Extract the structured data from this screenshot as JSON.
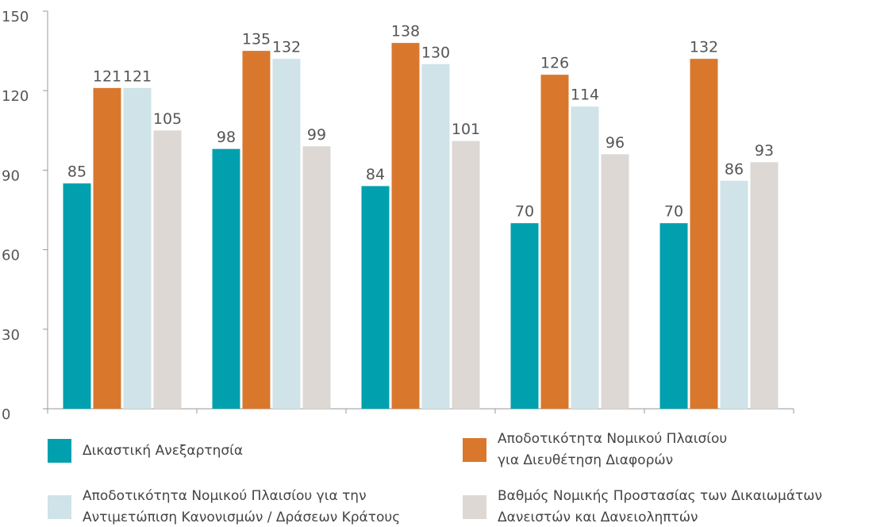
{
  "chart_data": {
    "type": "bar",
    "categories": [
      null,
      null,
      null,
      null,
      null
    ],
    "series": [
      {
        "name": "Δικαστική Ανεξαρτησία",
        "color": "#00a0ae",
        "values": [
          85,
          98,
          84,
          70,
          70
        ]
      },
      {
        "name": "Αποδοτικότητα Νομικού Πλαισίου για Διευθέτηση Διαφορών",
        "color": "#d9782d",
        "values": [
          121,
          135,
          138,
          126,
          132
        ]
      },
      {
        "name": "Αποδοτικότητα Νομικού Πλαισίου για την Αντιμετώπιση Κανονισμών / Δράσεων Κράτους",
        "color": "#cfe3e8",
        "values": [
          121,
          132,
          130,
          114,
          86
        ]
      },
      {
        "name": "Βαθμός Νομικής Προστασίας των Δικαιωμάτων Δανειστών και Δανειοληπτών",
        "color": "#ddd8d3",
        "values": [
          105,
          99,
          101,
          96,
          93
        ]
      }
    ],
    "ylim": [
      0,
      150
    ],
    "yticks": [
      0,
      30,
      60,
      90,
      120,
      150
    ]
  }
}
